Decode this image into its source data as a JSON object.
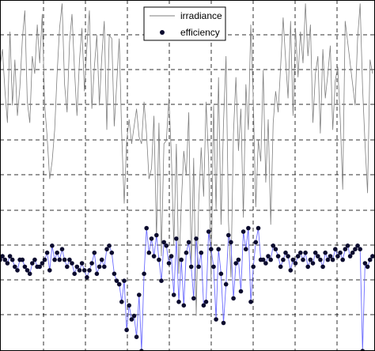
{
  "chart_data": {
    "type": "line",
    "title": "",
    "xlabel": "",
    "ylabel": "",
    "xlim": [
      0,
      151
    ],
    "ylim": [
      0,
      10
    ],
    "grid": true,
    "legend_placement": "top-center",
    "series": [
      {
        "name": "irradiance",
        "style": "line",
        "color": "#7f7f7f",
        "x": [
          0,
          1,
          2,
          3,
          4,
          5,
          6,
          7,
          8,
          9,
          10,
          11,
          12,
          13,
          14,
          15,
          16,
          17,
          18,
          19,
          20,
          21,
          22,
          23,
          24,
          25,
          26,
          27,
          28,
          29,
          30,
          31,
          32,
          33,
          34,
          35,
          36,
          37,
          38,
          39,
          40,
          41,
          42,
          43,
          44,
          45,
          46,
          47,
          48,
          49,
          50,
          51,
          52,
          53,
          54,
          55,
          56,
          57,
          58,
          59,
          60,
          61,
          62,
          63,
          64,
          65,
          66,
          67,
          68,
          69,
          70,
          71,
          72,
          73,
          74,
          75,
          76,
          77,
          78,
          79,
          80,
          81,
          82,
          83,
          84,
          85,
          86,
          87,
          88,
          89,
          90,
          91,
          92,
          93,
          94,
          95,
          96,
          97,
          98,
          99,
          100,
          101,
          102,
          103,
          104,
          105,
          106,
          107,
          108,
          109,
          110,
          111,
          112,
          113,
          114,
          115,
          116,
          117,
          118,
          119,
          120,
          121,
          122,
          123,
          124,
          125,
          126,
          127,
          128,
          129,
          130,
          131,
          132,
          133,
          134,
          135,
          136,
          137,
          138,
          139,
          140,
          141,
          142,
          143,
          144,
          145,
          146,
          147,
          148,
          149,
          150
        ],
        "values": [
          8.1,
          8.6,
          7.4,
          6.5,
          9.1,
          7.0,
          8.3,
          6.7,
          7.5,
          8.9,
          9.7,
          7.1,
          6.5,
          8.4,
          7.9,
          9.3,
          8.2,
          9.6,
          7.0,
          6.1,
          4.9,
          5.4,
          6.3,
          7.9,
          9.2,
          9.9,
          7.6,
          6.8,
          8.8,
          9.6,
          8.0,
          6.7,
          8.3,
          9.2,
          7.4,
          8.7,
          9.7,
          6.9,
          8.1,
          9.0,
          7.0,
          8.4,
          9.4,
          6.3,
          9.0,
          8.9,
          6.4,
          7.6,
          8.9,
          6.2,
          4.2,
          6.0,
          6.6,
          5.9,
          6.4,
          6.9,
          6.1,
          5.9,
          7.1,
          6.2,
          4.9,
          5.2,
          6.7,
          3.2,
          6.5,
          2.7,
          5.9,
          6.0,
          7.2,
          5.6,
          3.0,
          5.9,
          2.2,
          4.2,
          5.7,
          5.0,
          6.8,
          2.4,
          5.5,
          1.0,
          4.2,
          5.8,
          4.4,
          7.1,
          5.4,
          2.0,
          7.0,
          4.0,
          7.8,
          3.6,
          6.5,
          8.4,
          3.7,
          2.1,
          6.2,
          7.8,
          5.7,
          6.9,
          3.8,
          7.6,
          6.3,
          9.3,
          7.1,
          4.1,
          6.0,
          5.4,
          8.0,
          4.8,
          6.6,
          3.6,
          6.5,
          7.4,
          6.8,
          8.1,
          9.5,
          8.3,
          7.2,
          9.4,
          6.7,
          9.2,
          7.8,
          9.1,
          8.2,
          9.9,
          8.4,
          9.3,
          6.5,
          7.9,
          8.4,
          6.2,
          8.6,
          7.2,
          7.9,
          8.7,
          6.3,
          7.7,
          8.1,
          6.6,
          4.6,
          9.4,
          8.8,
          8.2,
          7.6,
          7.0,
          8.9,
          9.9,
          7.5,
          5.9,
          4.5,
          8.3,
          7.9
        ]
      },
      {
        "name": "efficiency",
        "style": "markers",
        "color": "#6b6bff",
        "marker_color": "#0b0b2e",
        "x": [
          0,
          1,
          2,
          3,
          4,
          5,
          6,
          7,
          8,
          9,
          10,
          11,
          12,
          13,
          14,
          15,
          16,
          17,
          18,
          19,
          20,
          21,
          22,
          23,
          24,
          25,
          26,
          27,
          28,
          29,
          30,
          31,
          32,
          33,
          34,
          35,
          36,
          37,
          38,
          39,
          40,
          41,
          42,
          43,
          44,
          45,
          46,
          47,
          48,
          49,
          50,
          51,
          52,
          53,
          54,
          55,
          56,
          57,
          58,
          59,
          60,
          61,
          62,
          63,
          64,
          65,
          66,
          67,
          68,
          69,
          70,
          71,
          72,
          73,
          74,
          75,
          76,
          77,
          78,
          79,
          80,
          81,
          82,
          83,
          84,
          85,
          86,
          87,
          88,
          89,
          90,
          91,
          92,
          93,
          94,
          95,
          96,
          97,
          98,
          99,
          100,
          101,
          102,
          103,
          104,
          105,
          106,
          107,
          108,
          109,
          110,
          111,
          112,
          113,
          114,
          115,
          116,
          117,
          118,
          119,
          120,
          121,
          122,
          123,
          124,
          125,
          126,
          127,
          128,
          129,
          130,
          131,
          132,
          133,
          134,
          135,
          136,
          137,
          138,
          139,
          140,
          141,
          142,
          143,
          144,
          145,
          146,
          147,
          148,
          149,
          150
        ],
        "values": [
          2.6,
          2.7,
          2.6,
          2.5,
          2.7,
          2.6,
          2.4,
          2.3,
          2.6,
          2.6,
          2.4,
          2.3,
          2.2,
          2.5,
          2.6,
          2.4,
          2.4,
          2.5,
          2.6,
          2.8,
          2.3,
          3.0,
          2.6,
          2.8,
          2.6,
          2.9,
          2.6,
          2.4,
          2.6,
          2.5,
          2.2,
          2.4,
          2.3,
          2.5,
          2.3,
          2.1,
          2.3,
          2.5,
          2.8,
          2.2,
          2.4,
          2.6,
          2.4,
          2.9,
          3.0,
          2.8,
          2.2,
          2.0,
          1.9,
          1.4,
          2.0,
          0.6,
          1.3,
          0.9,
          1.0,
          0.4,
          1.6,
          0.0,
          2.2,
          3.5,
          2.8,
          3.2,
          2.7,
          3.3,
          2.6,
          2.0,
          3.1,
          3.0,
          2.5,
          2.7,
          1.6,
          3.2,
          1.4,
          2.6,
          1.3,
          2.8,
          3.1,
          2.4,
          1.5,
          3.2,
          2.4,
          2.8,
          1.3,
          1.4,
          3.4,
          2.9,
          2.4,
          0.9,
          2.9,
          2.2,
          0.8,
          1.9,
          3.3,
          3.1,
          1.5,
          2.5,
          2.6,
          1.7,
          3.4,
          2.9,
          3.5,
          1.4,
          2.4,
          3.1,
          3.5,
          2.6,
          2.6,
          2.5,
          2.7,
          2.6,
          3.0,
          2.9,
          2.7,
          2.4,
          2.6,
          2.8,
          2.7,
          2.3,
          2.6,
          2.5,
          2.7,
          2.8,
          2.6,
          2.8,
          2.4,
          2.6,
          2.5,
          2.8,
          2.7,
          2.6,
          2.4,
          2.8,
          2.6,
          2.7,
          2.6,
          2.9,
          2.7,
          2.8,
          2.6,
          2.9,
          3.0,
          2.7,
          2.8,
          2.9,
          3.0,
          2.9,
          0.0,
          2.5,
          2.4,
          2.6,
          2.7
        ]
      }
    ]
  }
}
